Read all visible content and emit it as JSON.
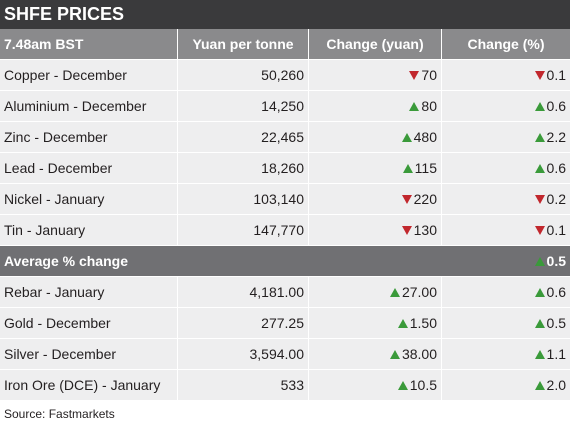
{
  "title": "SHFE PRICES",
  "header": {
    "col1": "7.48am BST",
    "col2": "Yuan per tonne",
    "col3": "Change (yuan)",
    "col4": "Change (%)"
  },
  "colors": {
    "up": "#3a9a3a",
    "down": "#c1272d",
    "title_bg": "#3a3a3c",
    "header_bg": "#8a8a8c",
    "row_bg": "#eeeeef",
    "avg_bg": "#707073"
  },
  "group1": [
    {
      "name": "Copper - December",
      "price": "50,260",
      "change": "70",
      "change_dir": "down",
      "pct": "0.1",
      "pct_dir": "down"
    },
    {
      "name": "Aluminium - December",
      "price": "14,250",
      "change": "80",
      "change_dir": "up",
      "pct": "0.6",
      "pct_dir": "up"
    },
    {
      "name": "Zinc - December",
      "price": "22,465",
      "change": "480",
      "change_dir": "up",
      "pct": "2.2",
      "pct_dir": "up"
    },
    {
      "name": "Lead - December",
      "price": "18,260",
      "change": "115",
      "change_dir": "up",
      "pct": "0.6",
      "pct_dir": "up"
    },
    {
      "name": "Nickel - January",
      "price": "103,140",
      "change": "220",
      "change_dir": "down",
      "pct": "0.2",
      "pct_dir": "down"
    },
    {
      "name": "Tin - January",
      "price": "147,770",
      "change": "130",
      "change_dir": "down",
      "pct": "0.1",
      "pct_dir": "down"
    }
  ],
  "average": {
    "label": "Average % change",
    "value": "0.5",
    "dir": "up"
  },
  "group2": [
    {
      "name": "Rebar - January",
      "price": "4,181.00",
      "change": "27.00",
      "change_dir": "up",
      "pct": "0.6",
      "pct_dir": "up"
    },
    {
      "name": "Gold  - December",
      "price": "277.25",
      "change": "1.50",
      "change_dir": "up",
      "pct": "0.5",
      "pct_dir": "up"
    },
    {
      "name": "Silver - December",
      "price": "3,594.00",
      "change": "38.00",
      "change_dir": "up",
      "pct": "1.1",
      "pct_dir": "up"
    },
    {
      "name": "Iron Ore (DCE) - January",
      "price": "533",
      "change": "10.5",
      "change_dir": "up",
      "pct": "2.0",
      "pct_dir": "up"
    }
  ],
  "source": "Source: Fastmarkets"
}
